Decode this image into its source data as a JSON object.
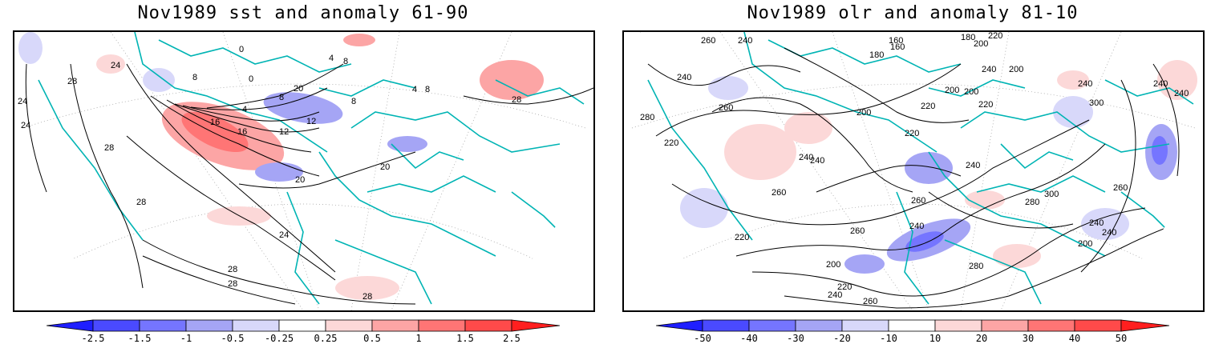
{
  "panels": [
    {
      "title": "Nov1989 sst and anomaly 61-90",
      "contour_labels": [
        "24",
        "28",
        "24",
        "0",
        "8",
        "0",
        "4",
        "8",
        "12",
        "16",
        "20",
        "24",
        "28",
        "4",
        "8",
        "12",
        "20",
        "28",
        "24",
        "28",
        "28",
        "28",
        "28",
        "20",
        "8",
        "4",
        "8",
        "16"
      ],
      "colorbar": {
        "levels": [
          "-2.5",
          "-1.5",
          "-1",
          "-0.5",
          "-0.25",
          "0.25",
          "0.5",
          "1",
          "1.5",
          "2.5"
        ],
        "colors": [
          "#1f1fff",
          "#4a4aff",
          "#7575ff",
          "#a5a5f5",
          "#d8d8fa",
          "#ffffff",
          "#fcd8d8",
          "#fca5a5",
          "#ff7575",
          "#ff4a4a",
          "#ff1f1f"
        ]
      }
    },
    {
      "title": "Nov1989 olr and anomaly 81-10",
      "contour_labels": [
        "260",
        "240",
        "160",
        "180",
        "160",
        "180",
        "200",
        "220",
        "240",
        "280",
        "240",
        "200",
        "260",
        "220",
        "240",
        "240",
        "200",
        "220",
        "200",
        "220",
        "260",
        "240",
        "260",
        "260",
        "280",
        "300",
        "300",
        "240",
        "260",
        "240",
        "240",
        "220",
        "200",
        "220",
        "240",
        "200",
        "220",
        "240",
        "260",
        "280",
        "240",
        "200",
        "240"
      ],
      "colorbar": {
        "levels": [
          "-50",
          "-40",
          "-30",
          "-20",
          "-10",
          "10",
          "20",
          "30",
          "40",
          "50"
        ],
        "colors": [
          "#1f1fff",
          "#4a4aff",
          "#7575ff",
          "#a5a5f5",
          "#d8d8fa",
          "#ffffff",
          "#fcd8d8",
          "#fca5a5",
          "#ff7575",
          "#ff4a4a",
          "#ff1f1f"
        ]
      }
    }
  ]
}
